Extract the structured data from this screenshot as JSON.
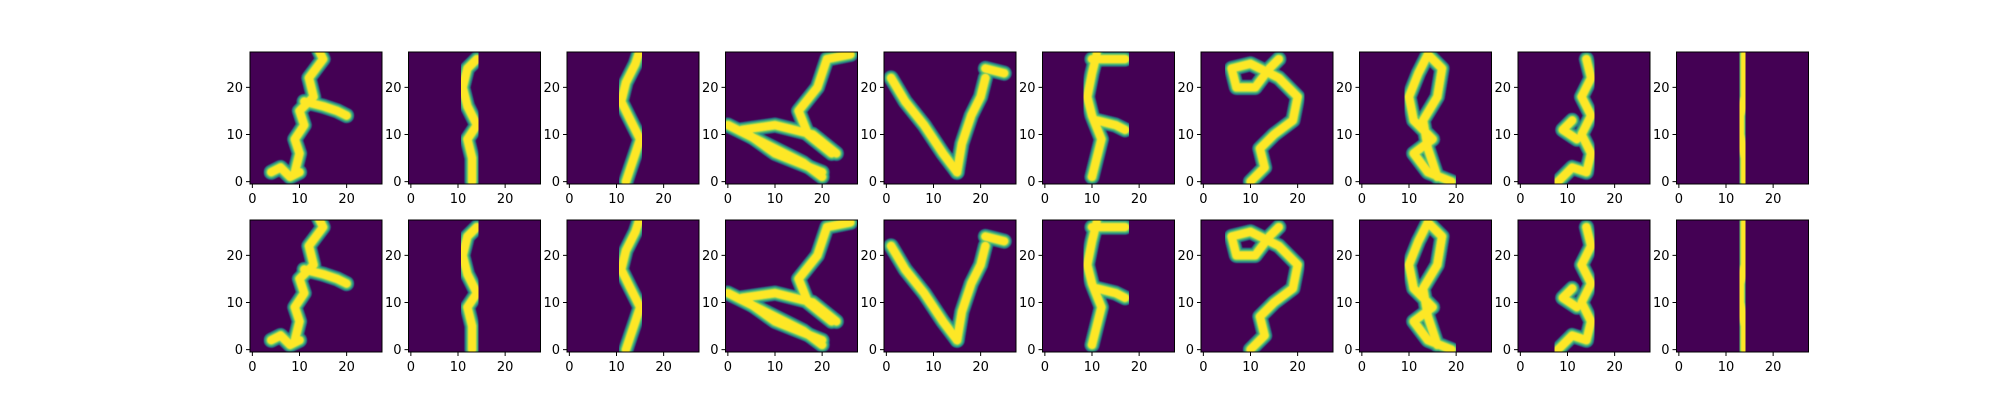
{
  "chart_data": {
    "type": "image_grid",
    "rows": 2,
    "cols": 10,
    "colormap": "viridis",
    "image_size": [
      28,
      28
    ],
    "xlim": [
      -0.5,
      27.5
    ],
    "ylim": [
      27.5,
      -0.5
    ],
    "xticks": [
      0,
      10,
      20
    ],
    "yticks": [
      0,
      10,
      20
    ],
    "xtick_labels": [
      "0",
      "10",
      "20"
    ],
    "ytick_labels": [
      "0",
      "10",
      "20"
    ],
    "panels": [
      {
        "row": 0,
        "col": 0,
        "strokes": [
          [
            [
              4,
              2
            ],
            [
              6,
              3
            ],
            [
              8,
              1
            ],
            [
              10,
              2
            ]
          ],
          [
            [
              9,
              2
            ],
            [
              10,
              6
            ],
            [
              9,
              9
            ],
            [
              11,
              12
            ],
            [
              10,
              15
            ],
            [
              13,
              18
            ],
            [
              12,
              22
            ],
            [
              15,
              26
            ],
            [
              14,
              28
            ]
          ],
          [
            [
              11,
              17
            ],
            [
              15,
              16
            ],
            [
              18,
              15
            ],
            [
              20,
              14
            ]
          ]
        ]
      },
      {
        "row": 0,
        "col": 1,
        "strokes": [
          [
            [
              13,
              0
            ],
            [
              13,
              5
            ],
            [
              12,
              9
            ],
            [
              14,
              12
            ],
            [
              12,
              16
            ],
            [
              11,
              20
            ],
            [
              12,
              24
            ],
            [
              14,
              26
            ]
          ]
        ]
      },
      {
        "row": 0,
        "col": 2,
        "strokes": [
          [
            [
              12,
              0
            ],
            [
              13,
              3
            ],
            [
              14,
              6
            ],
            [
              15,
              9
            ],
            [
              13,
              13
            ],
            [
              11,
              17
            ],
            [
              12,
              21
            ],
            [
              14,
              25
            ],
            [
              15,
              28
            ]
          ]
        ]
      },
      {
        "row": 0,
        "col": 3,
        "strokes": [
          [
            [
              0,
              12
            ],
            [
              8,
              8
            ],
            [
              16,
              4
            ],
            [
              20,
              1
            ]
          ],
          [
            [
              20,
              2
            ],
            [
              10,
              6
            ],
            [
              3,
              11
            ],
            [
              10,
              12
            ],
            [
              18,
              10
            ],
            [
              23,
              6
            ]
          ],
          [
            [
              22,
              6
            ],
            [
              17,
              10
            ],
            [
              15,
              15
            ],
            [
              19,
              20
            ],
            [
              21,
              26
            ],
            [
              26,
              27
            ]
          ]
        ]
      },
      {
        "row": 0,
        "col": 4,
        "strokes": [
          [
            [
              1,
              22
            ],
            [
              4,
              17
            ],
            [
              8,
              12
            ],
            [
              12,
              6
            ],
            [
              15,
              2
            ]
          ],
          [
            [
              15,
              2
            ],
            [
              16,
              8
            ],
            [
              18,
              14
            ],
            [
              20,
              18
            ],
            [
              21,
              22
            ]
          ],
          [
            [
              21,
              24
            ],
            [
              25,
              23
            ]
          ]
        ]
      },
      {
        "row": 0,
        "col": 5,
        "strokes": [
          [
            [
              10,
              1
            ],
            [
              11,
              5
            ],
            [
              12,
              9
            ],
            [
              10,
              14
            ],
            [
              9,
              18
            ],
            [
              10,
              23
            ],
            [
              11,
              27
            ]
          ],
          [
            [
              11,
              13
            ],
            [
              15,
              12
            ],
            [
              17,
              11
            ]
          ],
          [
            [
              10,
              26
            ],
            [
              17,
              26
            ]
          ]
        ]
      },
      {
        "row": 0,
        "col": 6,
        "strokes": [
          [
            [
              10,
              0
            ],
            [
              13,
              3
            ],
            [
              12,
              7
            ],
            [
              15,
              10
            ],
            [
              19,
              13
            ],
            [
              20,
              18
            ],
            [
              16,
              22
            ],
            [
              10,
              25
            ],
            [
              6,
              24
            ],
            [
              7,
              20
            ],
            [
              11,
              20
            ],
            [
              14,
              24
            ],
            [
              16,
              26
            ]
          ]
        ]
      },
      {
        "row": 0,
        "col": 7,
        "strokes": [
          [
            [
              19,
              0
            ],
            [
              14,
              2
            ],
            [
              11,
              6
            ],
            [
              15,
              9
            ],
            [
              11,
              13
            ],
            [
              10,
              18
            ],
            [
              12,
              23
            ],
            [
              14,
              27
            ],
            [
              17,
              24
            ],
            [
              16,
              18
            ],
            [
              13,
              13
            ],
            [
              14,
              7
            ],
            [
              16,
              1
            ]
          ]
        ]
      },
      {
        "row": 0,
        "col": 8,
        "strokes": [
          [
            [
              8,
              0
            ],
            [
              11,
              3
            ],
            [
              14,
              2
            ],
            [
              15,
              6
            ],
            [
              13,
              10
            ],
            [
              15,
              14
            ],
            [
              13,
              18
            ],
            [
              15,
              22
            ],
            [
              14,
              26
            ]
          ],
          [
            [
              12,
              9
            ],
            [
              9,
              11
            ],
            [
              11,
              13
            ]
          ]
        ]
      },
      {
        "row": 0,
        "col": 9,
        "strokes": [
          [
            [
              14,
              0
            ],
            [
              14,
              5
            ],
            [
              13,
              10
            ],
            [
              13,
              14
            ],
            [
              14,
              18
            ],
            [
              14,
              22
            ],
            [
              14,
              27
            ]
          ]
        ]
      },
      {
        "row": 1,
        "col": 0,
        "strokes": [
          [
            [
              4,
              2
            ],
            [
              6,
              3
            ],
            [
              8,
              1
            ],
            [
              10,
              2
            ]
          ],
          [
            [
              9,
              2
            ],
            [
              10,
              6
            ],
            [
              9,
              9
            ],
            [
              11,
              12
            ],
            [
              10,
              15
            ],
            [
              13,
              18
            ],
            [
              12,
              22
            ],
            [
              15,
              26
            ],
            [
              14,
              28
            ]
          ],
          [
            [
              11,
              17
            ],
            [
              15,
              16
            ],
            [
              18,
              15
            ],
            [
              20,
              14
            ]
          ]
        ]
      },
      {
        "row": 1,
        "col": 1,
        "strokes": [
          [
            [
              13,
              0
            ],
            [
              13,
              5
            ],
            [
              12,
              9
            ],
            [
              14,
              12
            ],
            [
              12,
              16
            ],
            [
              11,
              20
            ],
            [
              12,
              24
            ],
            [
              14,
              26
            ]
          ]
        ]
      },
      {
        "row": 1,
        "col": 2,
        "strokes": [
          [
            [
              12,
              0
            ],
            [
              13,
              3
            ],
            [
              14,
              6
            ],
            [
              15,
              9
            ],
            [
              13,
              13
            ],
            [
              11,
              17
            ],
            [
              12,
              21
            ],
            [
              14,
              25
            ],
            [
              15,
              28
            ]
          ]
        ]
      },
      {
        "row": 1,
        "col": 3,
        "strokes": [
          [
            [
              0,
              12
            ],
            [
              8,
              8
            ],
            [
              16,
              4
            ],
            [
              20,
              1
            ]
          ],
          [
            [
              20,
              2
            ],
            [
              10,
              6
            ],
            [
              3,
              11
            ],
            [
              10,
              12
            ],
            [
              18,
              10
            ],
            [
              23,
              6
            ]
          ],
          [
            [
              22,
              6
            ],
            [
              17,
              10
            ],
            [
              15,
              15
            ],
            [
              19,
              20
            ],
            [
              21,
              26
            ],
            [
              26,
              27
            ]
          ]
        ]
      },
      {
        "row": 1,
        "col": 4,
        "strokes": [
          [
            [
              1,
              22
            ],
            [
              4,
              17
            ],
            [
              8,
              12
            ],
            [
              12,
              6
            ],
            [
              15,
              2
            ]
          ],
          [
            [
              15,
              2
            ],
            [
              16,
              8
            ],
            [
              18,
              14
            ],
            [
              20,
              18
            ],
            [
              21,
              22
            ]
          ],
          [
            [
              21,
              24
            ],
            [
              25,
              23
            ]
          ]
        ]
      },
      {
        "row": 1,
        "col": 5,
        "strokes": [
          [
            [
              10,
              1
            ],
            [
              11,
              5
            ],
            [
              12,
              9
            ],
            [
              10,
              14
            ],
            [
              9,
              18
            ],
            [
              10,
              23
            ],
            [
              11,
              27
            ]
          ],
          [
            [
              11,
              13
            ],
            [
              15,
              12
            ],
            [
              17,
              11
            ]
          ],
          [
            [
              10,
              26
            ],
            [
              17,
              26
            ]
          ]
        ]
      },
      {
        "row": 1,
        "col": 6,
        "strokes": [
          [
            [
              10,
              0
            ],
            [
              13,
              3
            ],
            [
              12,
              7
            ],
            [
              15,
              10
            ],
            [
              19,
              13
            ],
            [
              20,
              18
            ],
            [
              16,
              22
            ],
            [
              10,
              25
            ],
            [
              6,
              24
            ],
            [
              7,
              20
            ],
            [
              11,
              20
            ],
            [
              14,
              24
            ],
            [
              16,
              26
            ]
          ]
        ]
      },
      {
        "row": 1,
        "col": 7,
        "strokes": [
          [
            [
              19,
              0
            ],
            [
              14,
              2
            ],
            [
              11,
              6
            ],
            [
              15,
              9
            ],
            [
              11,
              13
            ],
            [
              10,
              18
            ],
            [
              12,
              23
            ],
            [
              14,
              27
            ],
            [
              17,
              24
            ],
            [
              16,
              18
            ],
            [
              13,
              13
            ],
            [
              14,
              7
            ],
            [
              16,
              1
            ]
          ]
        ]
      },
      {
        "row": 1,
        "col": 8,
        "strokes": [
          [
            [
              8,
              0
            ],
            [
              11,
              3
            ],
            [
              14,
              2
            ],
            [
              15,
              6
            ],
            [
              13,
              10
            ],
            [
              15,
              14
            ],
            [
              13,
              18
            ],
            [
              15,
              22
            ],
            [
              14,
              26
            ]
          ],
          [
            [
              12,
              9
            ],
            [
              9,
              11
            ],
            [
              11,
              13
            ]
          ]
        ]
      },
      {
        "row": 1,
        "col": 9,
        "strokes": [
          [
            [
              14,
              0
            ],
            [
              14,
              5
            ],
            [
              13,
              10
            ],
            [
              13,
              14
            ],
            [
              14,
              18
            ],
            [
              14,
              22
            ],
            [
              14,
              27
            ]
          ]
        ]
      }
    ]
  },
  "colors": {
    "background": "#440154",
    "stroke_outer": "#21918c",
    "stroke_mid": "#5ec962",
    "stroke_core": "#fde725"
  }
}
